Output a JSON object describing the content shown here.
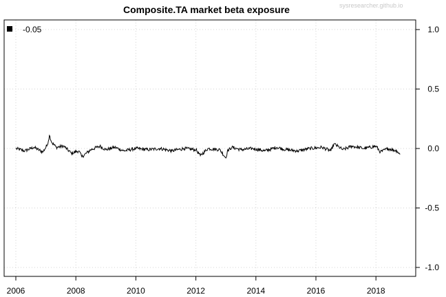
{
  "watermark": "sysresearcher.github.io",
  "chart_data": {
    "type": "line",
    "title": "Composite.TA market beta exposure",
    "xlabel": "",
    "ylabel": "",
    "xlim": [
      2006,
      2019.3
    ],
    "ylim": [
      -1.0,
      1.0
    ],
    "x_ticks": [
      "2006",
      "2008",
      "2010",
      "2012",
      "2014",
      "2016",
      "2018"
    ],
    "y_ticks": [
      "1.0",
      "0.5",
      "0.0",
      "-0.5",
      "-1.0"
    ],
    "y_axis_side": "right",
    "grid": true,
    "legend": {
      "position": "top-left",
      "entries": [
        "-0.05"
      ]
    },
    "series": [
      {
        "name": "-0.05",
        "color": "#000000",
        "x": [
          2006.0,
          2006.3,
          2006.6,
          2006.9,
          2007.05,
          2007.12,
          2007.2,
          2007.35,
          2007.6,
          2007.85,
          2008.1,
          2008.2,
          2008.5,
          2008.8,
          2009.0,
          2009.3,
          2009.6,
          2010.0,
          2010.4,
          2010.8,
          2011.2,
          2011.6,
          2012.0,
          2012.15,
          2012.4,
          2012.8,
          2013.0,
          2013.05,
          2013.2,
          2013.5,
          2013.9,
          2014.3,
          2014.7,
          2015.0,
          2015.4,
          2015.8,
          2016.2,
          2016.5,
          2016.6,
          2016.9,
          2017.2,
          2017.6,
          2018.0,
          2018.15,
          2018.4,
          2018.7,
          2018.8
        ],
        "y": [
          0.0,
          -0.02,
          0.01,
          -0.03,
          0.03,
          0.11,
          0.05,
          0.01,
          0.02,
          -0.04,
          -0.02,
          -0.07,
          -0.01,
          0.02,
          -0.01,
          0.01,
          -0.02,
          0.0,
          -0.01,
          0.0,
          -0.02,
          0.0,
          -0.01,
          -0.06,
          0.0,
          -0.01,
          -0.08,
          -0.02,
          0.01,
          -0.01,
          0.0,
          -0.02,
          0.01,
          -0.01,
          -0.02,
          0.0,
          0.01,
          -0.02,
          0.04,
          -0.01,
          0.02,
          0.0,
          0.02,
          -0.03,
          0.0,
          -0.02,
          -0.05
        ]
      }
    ]
  }
}
